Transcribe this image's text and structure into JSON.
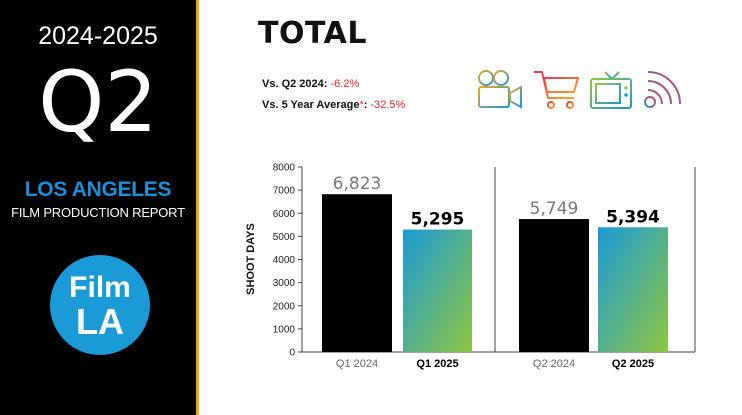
{
  "sidebar": {
    "years": "2024-2025",
    "quarter": "Q2",
    "city": "LOS ANGELES",
    "report": "FILM PRODUCTION REPORT",
    "logo_line1": "Film",
    "logo_line2": "LA"
  },
  "header": {
    "title": "TOTAL",
    "stat1_label": "Vs. Q2 2024: ",
    "stat1_value": "-6.2%",
    "stat2_label": "Vs. 5 Year Average",
    "stat2_star": "*",
    "stat2_sep": ": ",
    "stat2_value": "-32.5%"
  },
  "icons": [
    "movie-camera-icon",
    "shopping-cart-icon",
    "tv-icon",
    "broadcast-signal-icon"
  ],
  "colors": {
    "accent_orange": "#f2a71b",
    "brand_blue": "#1a9ad7",
    "negative_red": "#d9262c",
    "bar_prior": "#000000",
    "bar_gradient_top": "#1a9ad7",
    "bar_gradient_bottom": "#8fc63f"
  },
  "chart_data": {
    "type": "bar",
    "ylabel": "SHOOT DAYS",
    "ylim": [
      0,
      8000
    ],
    "yticks": [
      "0",
      "1000",
      "2000",
      "3000",
      "4000",
      "5000",
      "6000",
      "7000",
      "8000"
    ],
    "groups": [
      {
        "bars": [
          {
            "category": "Q1 2024",
            "value": 6823,
            "label": "6,823",
            "style": "prior"
          },
          {
            "category": "Q1 2025",
            "value": 5295,
            "label": "5,295",
            "style": "current"
          }
        ]
      },
      {
        "bars": [
          {
            "category": "Q2 2024",
            "value": 5749,
            "label": "5,749",
            "style": "prior"
          },
          {
            "category": "Q2 2025",
            "value": 5394,
            "label": "5,394",
            "style": "current"
          }
        ]
      }
    ]
  }
}
